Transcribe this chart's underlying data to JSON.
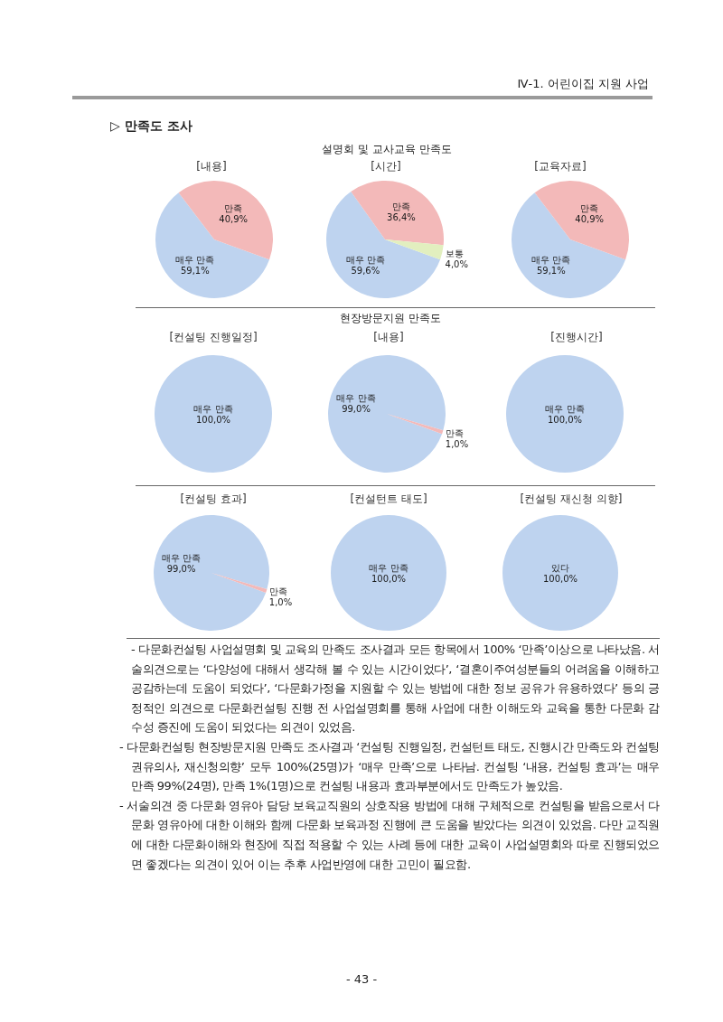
{
  "chart_data": [
    {
      "type": "pie",
      "title": "[내용]",
      "categories": [
        "매우 만족",
        "만족"
      ],
      "values": [
        59.1,
        40.9
      ],
      "colors": [
        "#bed3ef",
        "#f3b9b9"
      ],
      "value_labels": [
        "59,1%",
        "40,9%"
      ],
      "annotations": [
        "Ⅳ-1. 어린이집 지원 사업",
        "▷ 만족도 조사",
        "설명회 및 교사교육 만족도"
      ]
    },
    {
      "type": "pie",
      "title": "[시간]",
      "categories": [
        "매우 만족",
        "만족",
        "보통"
      ],
      "values": [
        59.6,
        36.4,
        4.0
      ],
      "colors": [
        "#bed3ef",
        "#f3b9b9",
        "#e2efbf"
      ],
      "value_labels": [
        "59,6%",
        "36,4%",
        "4,0%"
      ]
    },
    {
      "type": "pie",
      "title": "[교육자료]",
      "categories": [
        "매우 만족",
        "만족"
      ],
      "values": [
        59.1,
        40.9
      ],
      "colors": [
        "#bed3ef",
        "#f3b9b9"
      ],
      "value_labels": [
        "59,1%",
        "40,9%"
      ]
    },
    {
      "type": "pie",
      "title": "[컨설팅 진행일정]",
      "categories": [
        "매우 만족"
      ],
      "values": [
        100.0
      ],
      "colors": [
        "#bed3ef"
      ],
      "value_labels": [
        "100,0%"
      ],
      "annotations": [
        "현장방문지원 만족도"
      ]
    },
    {
      "type": "pie",
      "title": "[내용]",
      "categories": [
        "매우 만족",
        "만족"
      ],
      "values": [
        99.0,
        1.0
      ],
      "colors": [
        "#bed3ef",
        "#f3b9b9"
      ],
      "value_labels": [
        "99,0%",
        "1,0%"
      ]
    },
    {
      "type": "pie",
      "title": "[진행시간]",
      "categories": [
        "매우 만족"
      ],
      "values": [
        100.0
      ],
      "colors": [
        "#bed3ef"
      ],
      "value_labels": [
        "100,0%"
      ]
    },
    {
      "type": "pie",
      "title": "[컨설팅 효과]",
      "categories": [
        "매우 만족",
        "만족"
      ],
      "values": [
        99.0,
        1.0
      ],
      "colors": [
        "#bed3ef",
        "#f3b9b9"
      ],
      "value_labels": [
        "99,0%",
        "1,0%"
      ]
    },
    {
      "type": "pie",
      "title": "[컨설턴트 태도]",
      "categories": [
        "매우 만족"
      ],
      "values": [
        100.0
      ],
      "colors": [
        "#bed3ef"
      ],
      "value_labels": [
        "100,0%"
      ]
    },
    {
      "type": "pie",
      "title": "[컨설팅 재신청 의향]",
      "categories": [
        "있다"
      ],
      "values": [
        100.0
      ],
      "colors": [
        "#bed3ef"
      ],
      "value_labels": [
        "100,0%"
      ],
      "annotations": [
        "- 다문화컨설팅 사업설명회 및 교육의 만족도 조사결과 모든 항목에서 100% ‘만족’이상으로 나타났음. 서술의견으로는 ‘다양성에 대해서 생각해 볼 수 있는 시간이었다’, ‘결혼이주여성분들의 어려움을 이해하고 공감하는데 도움이 되었다’, ‘다문화가정을 지원할 수 있는 방법에 대한 정보 공유가 유용하였다’ 등의 긍정적인 의견으로 다문화컨설팅 진행 전 사업설명회를 통해 사업에 대한 이해도와 교육을 통한 다문화 감수성 증진에 도움이 되었다는 의견이 있었음.",
        "- 다문화컨설팅 현장방문지원 만족도 조사결과 ‘컨설팅 진행일정, 컨설턴트 태도, 진행시간 만족도와 컨설팅 권유의사, 재신청의향’ 모두 100%(25명)가 ‘매우 만족’으로 나타남. 컨설팅 ‘내용, 컨설팅 효과’는 매우 만족 99%(24명), 만족 1%(1명)으로 컨설팅 내용과 효과부분에서도 만족도가 높았음.",
        "- 서술의견 중 다문화 영유아 담당 보육교직원의 상호작용 방법에 대해 구체적으로 컨설팅을 받음으로서 다문화 영유아에 대한 이해와 함께 다문화 보육과정 진행에 큰 도움을 받았다는 의견이 있었음. 다만 교직원에 대한 다문화이해와 현장에 직접 적용할 수 있는 사례 등에 대한 교육이 사업설명회와 따로 진행되었으면 좋겠다는 의견이 있어 이는 추후 사업반영에 대한 고민이 필요함.",
        "- 43 -"
      ]
    }
  ]
}
